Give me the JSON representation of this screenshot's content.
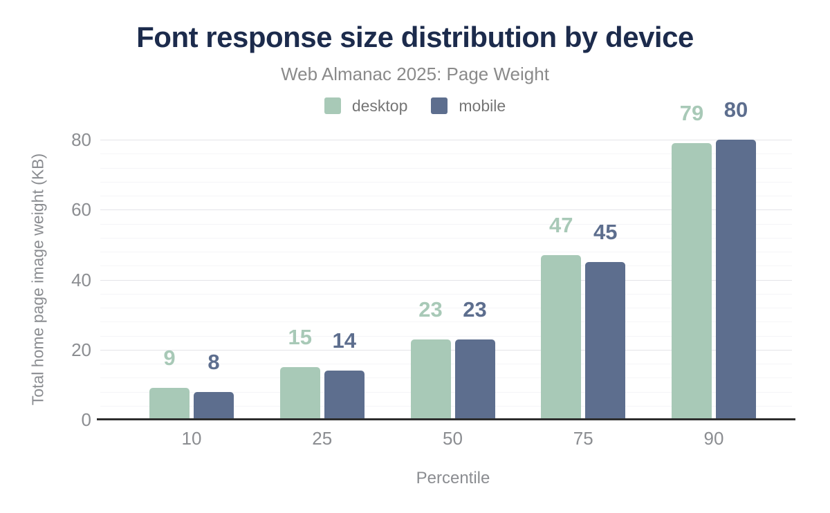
{
  "chart_data": {
    "type": "bar",
    "title": "Font response size distribution by device",
    "subtitle": "Web Almanac 2025: Page Weight",
    "xlabel": "Percentile",
    "ylabel": "Total home page image weight (KB)",
    "categories": [
      "10",
      "25",
      "50",
      "75",
      "90"
    ],
    "series": [
      {
        "name": "desktop",
        "color": "#a8c9b7",
        "values": [
          9,
          15,
          23,
          47,
          79
        ]
      },
      {
        "name": "mobile",
        "color": "#5d6e8e",
        "values": [
          8,
          14,
          23,
          45,
          80
        ]
      }
    ],
    "ylim": [
      0,
      80
    ],
    "yticks": [
      0,
      20,
      40,
      60,
      80
    ],
    "minor_grid_step": 4,
    "grid": "horizontal (major + faint minor lines)",
    "legend_position": "top-center",
    "data_labels": true,
    "bar_corner_radius": 5
  },
  "palette": {
    "title_text": "#1c2b4c",
    "subtitle_text": "#8a8a8a",
    "tick_text": "#8b8d91",
    "legend_text": "#757575",
    "axis_line": "#2e2e2e",
    "major_grid": "#e4e4e8",
    "minor_grid": "#f5f5f7",
    "background": "#ffffff"
  }
}
